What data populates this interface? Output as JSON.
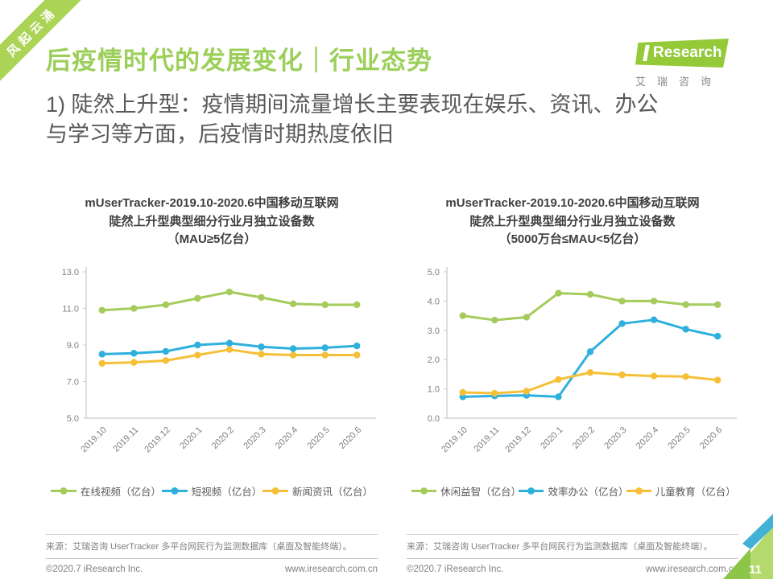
{
  "ribbon": {
    "text": "风起云涌"
  },
  "header": {
    "title": "后疫情时代的发展变化｜行业态势",
    "logo": {
      "brand": "Research",
      "subtext": "艾瑞咨询"
    }
  },
  "subtitle": {
    "line1": "1) 陡然上升型：疫情期间流量增长主要表现在娱乐、资讯、办公",
    "line2": "与学习等方面，后疫情时期热度依旧"
  },
  "chart_data": [
    {
      "type": "line",
      "title_lines": [
        "mUserTracker-2019.10-2020.6中国移动互联网",
        "陡然上升型典型细分行业月独立设备数",
        "（MAU≥5亿台）"
      ],
      "categories": [
        "2019.10",
        "2019.11",
        "2019.12",
        "2020.1",
        "2020.2",
        "2020.3",
        "2020.4",
        "2020.5",
        "2020.6"
      ],
      "ylim": [
        5.0,
        13.0
      ],
      "yticks": [
        5.0,
        7.0,
        9.0,
        11.0,
        13.0
      ],
      "grid": false,
      "legend_position": "bottom",
      "xlabel": "",
      "ylabel": "",
      "series": [
        {
          "name": "在线视频（亿台）",
          "color": "#a5cb5c",
          "values": [
            10.9,
            11.0,
            11.2,
            11.55,
            11.9,
            11.6,
            11.25,
            11.2,
            11.2
          ]
        },
        {
          "name": "短视频（亿台）",
          "color": "#2eb0dd",
          "values": [
            8.5,
            8.55,
            8.65,
            9.0,
            9.1,
            8.9,
            8.8,
            8.85,
            8.95
          ]
        },
        {
          "name": "新闻资讯（亿台）",
          "color": "#f5c037",
          "values": [
            8.0,
            8.05,
            8.15,
            8.45,
            8.75,
            8.5,
            8.45,
            8.45,
            8.45
          ]
        }
      ]
    },
    {
      "type": "line",
      "title_lines": [
        "mUserTracker-2019.10-2020.6中国移动互联网",
        "陡然上升型典型细分行业月独立设备数",
        "（5000万台≤MAU<5亿台）"
      ],
      "categories": [
        "2019.10",
        "2019.11",
        "2019.12",
        "2020.1",
        "2020.2",
        "2020.3",
        "2020.4",
        "2020.5",
        "2020.6"
      ],
      "ylim": [
        0.0,
        5.0
      ],
      "yticks": [
        0.0,
        1.0,
        2.0,
        3.0,
        4.0,
        5.0
      ],
      "grid": false,
      "legend_position": "bottom",
      "xlabel": "",
      "ylabel": "",
      "series": [
        {
          "name": "休闲益智（亿台）",
          "color": "#a5cb5c",
          "values": [
            3.5,
            3.35,
            3.45,
            4.27,
            4.23,
            4.0,
            4.0,
            3.88,
            3.88
          ]
        },
        {
          "name": "效率办公（亿台）",
          "color": "#2eb0dd",
          "values": [
            0.73,
            0.76,
            0.78,
            0.73,
            2.27,
            3.23,
            3.36,
            3.04,
            2.8
          ]
        },
        {
          "name": "儿童教育（亿台）",
          "color": "#f5c037",
          "values": [
            0.88,
            0.85,
            0.92,
            1.32,
            1.56,
            1.48,
            1.44,
            1.42,
            1.3
          ]
        }
      ]
    }
  ],
  "footer": {
    "source": "来源：艾瑞咨询 UserTracker 多平台网民行为监测数据库（桌面及智能终端）。",
    "copyright": "©2020.7 iResearch Inc.",
    "website": "www.iresearch.com.cn",
    "page_number": "11"
  },
  "colors": {
    "brand_green": "#94c938",
    "heading_green": "#9ccf5a",
    "ribbon_green": "#abd355",
    "line_green": "#a5cb5c",
    "line_blue": "#2eb0dd",
    "line_yellow": "#f5c037",
    "corner_light_green": "#b4d96d",
    "corner_mid_green": "#8cc549",
    "corner_blue": "#41b1d6",
    "axis_gray": "#c8c8c8",
    "text_gray": "#595959"
  }
}
